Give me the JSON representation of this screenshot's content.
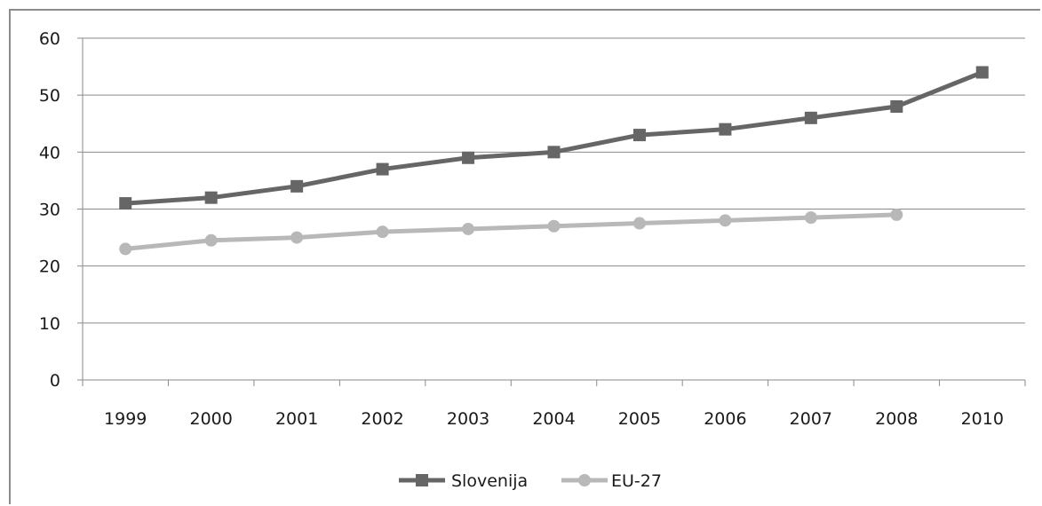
{
  "chart_data": {
    "type": "line",
    "title": "",
    "xlabel": "",
    "ylabel": "",
    "categories": [
      "1999",
      "2000",
      "2001",
      "2002",
      "2003",
      "2004",
      "2005",
      "2006",
      "2007",
      "2008",
      "2010"
    ],
    "ylim": [
      0,
      60
    ],
    "yticks": [
      0,
      10,
      20,
      30,
      40,
      50,
      60
    ],
    "grid": true,
    "legend": "bottom",
    "series": [
      {
        "name": "Slovenija",
        "color": "#666666",
        "marker": "square",
        "values": [
          31,
          32,
          34,
          37,
          39,
          40,
          43,
          44,
          46,
          48,
          54
        ]
      },
      {
        "name": "EU-27",
        "color": "#b8b8b8",
        "marker": "circle",
        "values": [
          23,
          24.5,
          25,
          26,
          26.5,
          27,
          27.5,
          28,
          28.5,
          29,
          null
        ]
      }
    ]
  }
}
